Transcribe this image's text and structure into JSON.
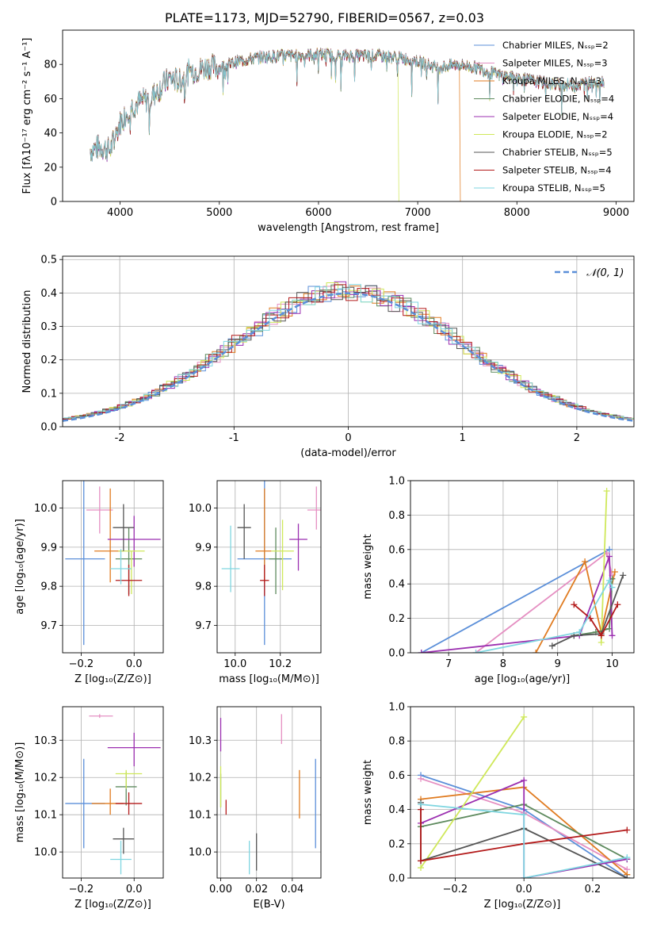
{
  "colors": [
    "#5b8fd9",
    "#e58fc2",
    "#e07b20",
    "#5e8a5e",
    "#9b2fb0",
    "#cfe85a",
    "#555555",
    "#b31a1a",
    "#7fd6e0"
  ],
  "normal_color": "#5b8fd9",
  "chart_data": [
    {
      "id": "spectrum",
      "type": "line",
      "title": "PLATE=1173, MJD=52790, FIBERID=0567, z=0.03",
      "xlabel": "wavelength [Angstrom, rest frame]",
      "ylabel": "Flux [fλ10⁻¹⁷ erg cm⁻² s⁻¹ A⁻¹]",
      "xlim": [
        3420,
        9180
      ],
      "ylim": [
        0,
        100
      ],
      "xticks": [
        4000,
        5000,
        6000,
        7000,
        8000,
        9000
      ],
      "yticks": [
        0,
        20,
        40,
        60,
        80
      ],
      "grid": false,
      "legend_position": "top-right",
      "series": [
        {
          "name": "Chabrier MILES, Nₛₛₚ=2"
        },
        {
          "name": "Salpeter MILES, Nₛₛₚ=3"
        },
        {
          "name": "Kroupa MILES, Nₛₛₚ=3"
        },
        {
          "name": "Chabrier ELODIE, Nₛₛₚ=4"
        },
        {
          "name": "Salpeter ELODIE, Nₛₛₚ=4"
        },
        {
          "name": "Kroupa ELODIE, Nₛₛₚ=2"
        },
        {
          "name": "Chabrier STELIB, Nₛₛₚ=5"
        },
        {
          "name": "Salpeter STELIB, Nₛₛₚ=4"
        },
        {
          "name": "Kroupa STELIB, Nₛₛₚ=5"
        }
      ],
      "continuum": {
        "x": [
          3700,
          3800,
          3900,
          4000,
          4100,
          4200,
          4300,
          4400,
          4500,
          4600,
          4700,
          4800,
          4900,
          5000,
          5200,
          5400,
          5600,
          5800,
          6000,
          6200,
          6400,
          6600,
          6800,
          7000,
          7200,
          7400,
          7600,
          7800,
          8000,
          8200,
          8400,
          8600,
          8800
        ],
        "y": [
          30,
          32,
          30,
          46,
          55,
          58,
          60,
          66,
          72,
          70,
          76,
          77,
          79,
          78,
          82,
          84,
          85,
          85,
          86,
          85,
          85,
          85,
          84,
          82,
          78,
          80,
          78,
          74,
          72,
          70,
          68,
          68,
          70
        ]
      },
      "dropouts": [
        {
          "series": 5,
          "from_x": 6800,
          "to_y": 0
        },
        {
          "series": 2,
          "from_x": 7420,
          "to_y": 0
        }
      ]
    },
    {
      "id": "residuals",
      "type": "step",
      "xlabel": "(data-model)/error",
      "ylabel": "Normed distribution",
      "xlim": [
        -2.5,
        2.5
      ],
      "ylim": [
        0,
        0.51
      ],
      "xticks": [
        -2,
        -1,
        0,
        1,
        2
      ],
      "yticks": [
        0.0,
        0.1,
        0.2,
        0.3,
        0.4,
        0.5
      ],
      "grid": true,
      "bin_width": 0.1,
      "legend_position": "top-right",
      "normal_label": "𝒩(0, 1)",
      "histogram_noise": [
        [
          0.01,
          -0.02,
          0.03,
          0.05,
          -0.04,
          0.0,
          0.02,
          -0.06,
          0.04,
          0.07,
          -0.03,
          0.02,
          -0.05,
          0.03,
          0.0,
          0.06,
          -0.02,
          -0.07,
          0.05,
          0.01,
          -0.04,
          0.03,
          0.08,
          -0.05,
          0.02,
          0.0,
          -0.03,
          0.06,
          -0.01,
          0.04
        ],
        [
          0.05,
          0.02,
          -0.06,
          0.01,
          0.04,
          -0.03,
          0.07,
          -0.02,
          0.0,
          0.03,
          -0.05,
          0.06,
          0.02,
          -0.04,
          0.01,
          0.05,
          -0.06,
          0.03,
          0.0,
          -0.02,
          0.04,
          -0.05,
          0.06,
          0.01,
          -0.03,
          0.02,
          0.05,
          -0.04,
          0.0,
          0.03
        ],
        [
          -0.03,
          0.04,
          0.0,
          -0.05,
          0.06,
          0.02,
          -0.04,
          0.03,
          0.07,
          -0.02,
          0.01,
          -0.06,
          0.05,
          0.0,
          0.03,
          -0.04,
          0.06,
          -0.01,
          0.02,
          0.05,
          -0.06,
          0.0,
          0.03,
          -0.02,
          0.07,
          -0.05,
          0.01,
          0.04,
          -0.03,
          0.02
        ]
      ],
      "normal": {
        "mean": 0,
        "sigma": 1
      }
    },
    {
      "id": "age_vs_Z",
      "type": "errorbar",
      "xlabel": "Z [log₁₀(Z/Z⊙)]",
      "ylabel": "age  [log₁₀(age/yr)]",
      "xlim": [
        -0.27,
        0.11
      ],
      "ylim": [
        9.63,
        10.07
      ],
      "xticks": [
        -0.2,
        0.0
      ],
      "xticklabels": [
        "−0.2",
        "0.0"
      ],
      "yticks": [
        9.7,
        9.8,
        9.9,
        10.0
      ],
      "grid": true,
      "points": [
        {
          "x": -0.19,
          "y": 9.87,
          "xerr": [
            0.07,
            0.08
          ],
          "yerr": [
            0.22,
            0.21
          ]
        },
        {
          "x": -0.13,
          "y": 9.995,
          "xerr": [
            0.05,
            0.05
          ],
          "yerr": [
            0.06,
            0.06
          ]
        },
        {
          "x": -0.09,
          "y": 9.89,
          "xerr": [
            0.06,
            0.05
          ],
          "yerr": [
            0.08,
            0.16
          ]
        },
        {
          "x": -0.02,
          "y": 9.87,
          "xerr": [
            0.05,
            0.05
          ],
          "yerr": [
            0.09,
            0.08
          ]
        },
        {
          "x": 0.0,
          "y": 9.92,
          "xerr": [
            0.1,
            0.1
          ],
          "yerr": [
            0.07,
            0.06
          ]
        },
        {
          "x": -0.01,
          "y": 9.89,
          "xerr": [
            0.05,
            0.05
          ],
          "yerr": [
            0.11,
            0.0
          ]
        },
        {
          "x": -0.04,
          "y": 9.95,
          "xerr": [
            0.04,
            0.04
          ],
          "yerr": [
            0.06,
            0.06
          ]
        },
        {
          "x": -0.02,
          "y": 9.815,
          "xerr": [
            0.05,
            0.05
          ],
          "yerr": [
            0.04,
            0.04
          ]
        },
        {
          "x": -0.05,
          "y": 9.845,
          "xerr": [
            0.04,
            0.04
          ],
          "yerr": [
            0.04,
            0.05
          ]
        }
      ]
    },
    {
      "id": "age_vs_mass",
      "type": "errorbar",
      "xlabel": "mass [log₁₀(M/M⊙)]",
      "ylabel": "",
      "xlim": [
        9.92,
        10.38
      ],
      "ylim": [
        9.63,
        10.07
      ],
      "xticks": [
        10.0,
        10.2
      ],
      "xticklabels": [
        "10.0",
        "10.2"
      ],
      "yticks": [
        9.7,
        9.8,
        9.9,
        10.0
      ],
      "grid": true,
      "points": [
        {
          "x": 10.13,
          "y": 9.87,
          "xerr": [
            0.12,
            0.12
          ],
          "yerr": [
            0.22,
            0.21
          ]
        },
        {
          "x": 10.36,
          "y": 9.995,
          "xerr": [
            0.04,
            0.04
          ],
          "yerr": [
            0.05,
            0.06
          ]
        },
        {
          "x": 10.13,
          "y": 9.89,
          "xerr": [
            0.04,
            0.03
          ],
          "yerr": [
            0.08,
            0.16
          ]
        },
        {
          "x": 10.18,
          "y": 9.87,
          "xerr": [
            0.03,
            0.03
          ],
          "yerr": [
            0.09,
            0.08
          ]
        },
        {
          "x": 10.28,
          "y": 9.92,
          "xerr": [
            0.04,
            0.04
          ],
          "yerr": [
            0.08,
            0.04
          ]
        },
        {
          "x": 10.21,
          "y": 9.89,
          "xerr": [
            0.05,
            0.05
          ],
          "yerr": [
            0.1,
            0.08
          ]
        },
        {
          "x": 10.04,
          "y": 9.95,
          "xerr": [
            0.03,
            0.03
          ],
          "yerr": [
            0.08,
            0.06
          ]
        },
        {
          "x": 10.13,
          "y": 9.815,
          "xerr": [
            0.02,
            0.02
          ],
          "yerr": [
            0.04,
            0.04
          ]
        },
        {
          "x": 9.98,
          "y": 9.845,
          "xerr": [
            0.04,
            0.04
          ],
          "yerr": [
            0.06,
            0.11
          ]
        }
      ]
    },
    {
      "id": "weight_vs_age",
      "type": "line",
      "xlabel": "age  [log₁₀(age/yr)]",
      "ylabel": "mass weight",
      "xlim": [
        6.3,
        10.4
      ],
      "ylim": [
        0,
        1.0
      ],
      "xticks": [
        7,
        8,
        9,
        10
      ],
      "yticks": [
        0.0,
        0.2,
        0.4,
        0.6,
        0.8,
        1.0
      ],
      "grid": true,
      "series": [
        {
          "x": [
            6.5,
            9.95
          ],
          "y": [
            0.0,
            0.6
          ]
        },
        {
          "x": [
            7.5,
            9.9,
            10.0
          ],
          "y": [
            0.0,
            0.58,
            0.45
          ]
        },
        {
          "x": [
            8.6,
            9.5,
            9.8,
            10.05
          ],
          "y": [
            0.0,
            0.53,
            0.12,
            0.47
          ]
        },
        {
          "x": [
            9.3,
            9.7,
            9.95,
            10.0
          ],
          "y": [
            0.1,
            0.12,
            0.14,
            0.43
          ]
        },
        {
          "x": [
            6.5,
            9.4,
            9.95,
            10.0
          ],
          "y": [
            0.0,
            0.1,
            0.56,
            0.1
          ]
        },
        {
          "x": [
            9.8,
            9.9
          ],
          "y": [
            0.06,
            0.94
          ]
        },
        {
          "x": [
            8.9,
            9.3,
            9.8,
            10.2
          ],
          "y": [
            0.04,
            0.1,
            0.11,
            0.45
          ]
        },
        {
          "x": [
            9.3,
            9.6,
            9.8,
            10.1
          ],
          "y": [
            0.28,
            0.2,
            0.1,
            0.28
          ]
        },
        {
          "x": [
            7.5,
            9.4,
            9.95,
            10.0
          ],
          "y": [
            0.0,
            0.12,
            0.42,
            0.38
          ]
        }
      ]
    },
    {
      "id": "mass_vs_Z",
      "type": "errorbar",
      "xlabel": "Z [log₁₀(Z/Z⊙)]",
      "ylabel": "mass [log₁₀(M/M⊙)]",
      "xlim": [
        -0.27,
        0.11
      ],
      "ylim": [
        9.93,
        10.39
      ],
      "xticks": [
        -0.2,
        0.0
      ],
      "xticklabels": [
        "−0.2",
        "0.0"
      ],
      "yticks": [
        10.0,
        10.1,
        10.2,
        10.3
      ],
      "grid": true,
      "points": [
        {
          "x": -0.19,
          "y": 10.13,
          "xerr": [
            0.07,
            0.08
          ],
          "yerr": [
            0.12,
            0.12
          ]
        },
        {
          "x": -0.13,
          "y": 10.365,
          "xerr": [
            0.04,
            0.05
          ],
          "yerr": [
            0.005,
            0.005
          ]
        },
        {
          "x": -0.09,
          "y": 10.13,
          "xerr": [
            0.07,
            0.05
          ],
          "yerr": [
            0.03,
            0.04
          ]
        },
        {
          "x": -0.03,
          "y": 10.175,
          "xerr": [
            0.04,
            0.04
          ],
          "yerr": [
            0.05,
            0.04
          ]
        },
        {
          "x": 0.0,
          "y": 10.28,
          "xerr": [
            0.1,
            0.1
          ],
          "yerr": [
            0.05,
            0.04
          ]
        },
        {
          "x": -0.03,
          "y": 10.21,
          "xerr": [
            0.04,
            0.06
          ],
          "yerr": [
            0.04,
            0.01
          ]
        },
        {
          "x": -0.04,
          "y": 10.035,
          "xerr": [
            0.04,
            0.04
          ],
          "yerr": [
            0.04,
            0.03
          ]
        },
        {
          "x": -0.02,
          "y": 10.13,
          "xerr": [
            0.05,
            0.05
          ],
          "yerr": [
            0.03,
            0.03
          ]
        },
        {
          "x": -0.05,
          "y": 9.98,
          "xerr": [
            0.04,
            0.04
          ],
          "yerr": [
            0.04,
            0.05
          ]
        }
      ]
    },
    {
      "id": "mass_vs_ebv",
      "type": "errorbar",
      "xlabel": "E(B-V)",
      "ylabel": "",
      "xlim": [
        -0.002,
        0.056
      ],
      "ylim": [
        9.93,
        10.39
      ],
      "xticks": [
        0.0,
        0.02,
        0.04
      ],
      "xticklabels": [
        "0.00",
        "0.02",
        "0.04"
      ],
      "yticks": [
        10.0,
        10.1,
        10.2,
        10.3
      ],
      "grid": true,
      "points": [
        {
          "x": 0.053,
          "y": 10.13,
          "xerr": [
            0,
            0
          ],
          "yerr": [
            0.12,
            0.12
          ]
        },
        {
          "x": 0.034,
          "y": 10.33,
          "xerr": [
            0,
            0
          ],
          "yerr": [
            0.04,
            0.04
          ]
        },
        {
          "x": 0.044,
          "y": 10.15,
          "xerr": [
            0,
            0
          ],
          "yerr": [
            0.06,
            0.07
          ]
        },
        {
          "x": 0.0,
          "y": 10.17,
          "xerr": [
            0,
            0
          ],
          "yerr": [
            0.05,
            0.04
          ]
        },
        {
          "x": 0.0,
          "y": 10.32,
          "xerr": [
            0,
            0
          ],
          "yerr": [
            0.05,
            0.04
          ]
        },
        {
          "x": 0.0,
          "y": 10.17,
          "xerr": [
            0,
            0
          ],
          "yerr": [
            0.05,
            0.06
          ]
        },
        {
          "x": 0.02,
          "y": 10.0,
          "xerr": [
            0,
            0
          ],
          "yerr": [
            0.05,
            0.05
          ]
        },
        {
          "x": 0.003,
          "y": 10.12,
          "xerr": [
            0,
            0
          ],
          "yerr": [
            0.02,
            0.02
          ]
        },
        {
          "x": 0.016,
          "y": 9.98,
          "xerr": [
            0,
            0
          ],
          "yerr": [
            0.04,
            0.05
          ]
        }
      ]
    },
    {
      "id": "weight_vs_Z",
      "type": "line",
      "xlabel": "Z [log₁₀(Z/Z⊙)]",
      "ylabel": "mass weight",
      "xlim": [
        -0.33,
        0.32
      ],
      "ylim": [
        0,
        1.0
      ],
      "xticks": [
        -0.2,
        0.0,
        0.2
      ],
      "xticklabels": [
        "−0.2",
        "0.0",
        "0.2"
      ],
      "yticks": [
        0.0,
        0.2,
        0.4,
        0.6,
        0.8,
        1.0
      ],
      "grid": true,
      "series": [
        {
          "x": [
            -0.3,
            0.0,
            0.3
          ],
          "y": [
            0.6,
            0.4,
            0.0
          ]
        },
        {
          "x": [
            -0.3,
            0.0,
            0.3
          ],
          "y": [
            0.58,
            0.38,
            0.05
          ]
        },
        {
          "x": [
            -0.3,
            0.0,
            0.3
          ],
          "y": [
            0.46,
            0.53,
            0.02
          ]
        },
        {
          "x": [
            -0.3,
            -0.3,
            0.0,
            0.3
          ],
          "y": [
            0.3,
            0.3,
            0.43,
            0.11
          ]
        },
        {
          "x": [
            -0.3,
            0.0,
            0.0,
            0.3
          ],
          "y": [
            0.32,
            0.57,
            0.0,
            0.11
          ]
        },
        {
          "x": [
            -0.3,
            0.0
          ],
          "y": [
            0.06,
            0.94
          ]
        },
        {
          "x": [
            -0.3,
            -0.3,
            0.0,
            0.3
          ],
          "y": [
            0.44,
            0.1,
            0.29,
            0.0
          ]
        },
        {
          "x": [
            -0.3,
            -0.3,
            0.0,
            0.3
          ],
          "y": [
            0.4,
            0.1,
            0.2,
            0.28
          ]
        },
        {
          "x": [
            -0.3,
            0.0,
            0.0,
            0.3
          ],
          "y": [
            0.43,
            0.37,
            0.0,
            0.12
          ]
        }
      ]
    }
  ]
}
